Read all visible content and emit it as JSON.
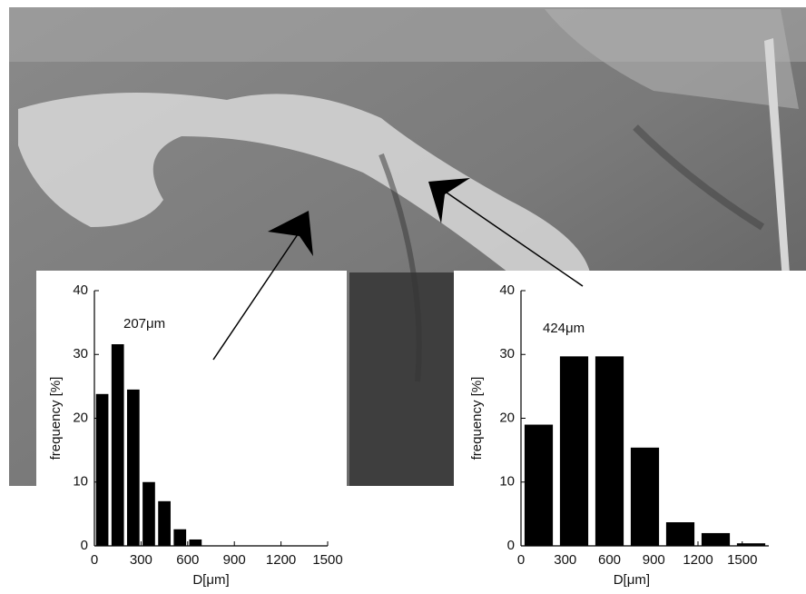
{
  "chart_data": [
    {
      "type": "histogram",
      "annotation": "207μm",
      "xlabel": "D[μm]",
      "ylabel": "frequency [%]",
      "bins": [
        0,
        100,
        200,
        300,
        400,
        500,
        600,
        700
      ],
      "values": [
        23.8,
        31.6,
        24.5,
        10,
        7,
        2.6,
        1
      ],
      "color": "#000000",
      "xlim": [
        0,
        1500
      ],
      "xticks": [
        0,
        300,
        600,
        900,
        1200,
        1500
      ],
      "ylim": [
        0,
        40
      ],
      "yticks": [
        0,
        10,
        20,
        30,
        40
      ]
    },
    {
      "type": "histogram",
      "annotation": "424μm",
      "xlabel": "D[μm]",
      "ylabel": "frequency [%]",
      "bins": [
        0,
        240,
        480,
        720,
        960,
        1200,
        1440,
        1680
      ],
      "values": [
        19,
        29.7,
        29.7,
        15.4,
        3.7,
        2,
        0.4
      ],
      "color": "#000000",
      "xlim": [
        0,
        1680
      ],
      "xticks": [
        0,
        300,
        600,
        900,
        1200,
        1500
      ],
      "ylim": [
        0,
        40
      ],
      "yticks": [
        0,
        10,
        20,
        30,
        40
      ]
    }
  ]
}
